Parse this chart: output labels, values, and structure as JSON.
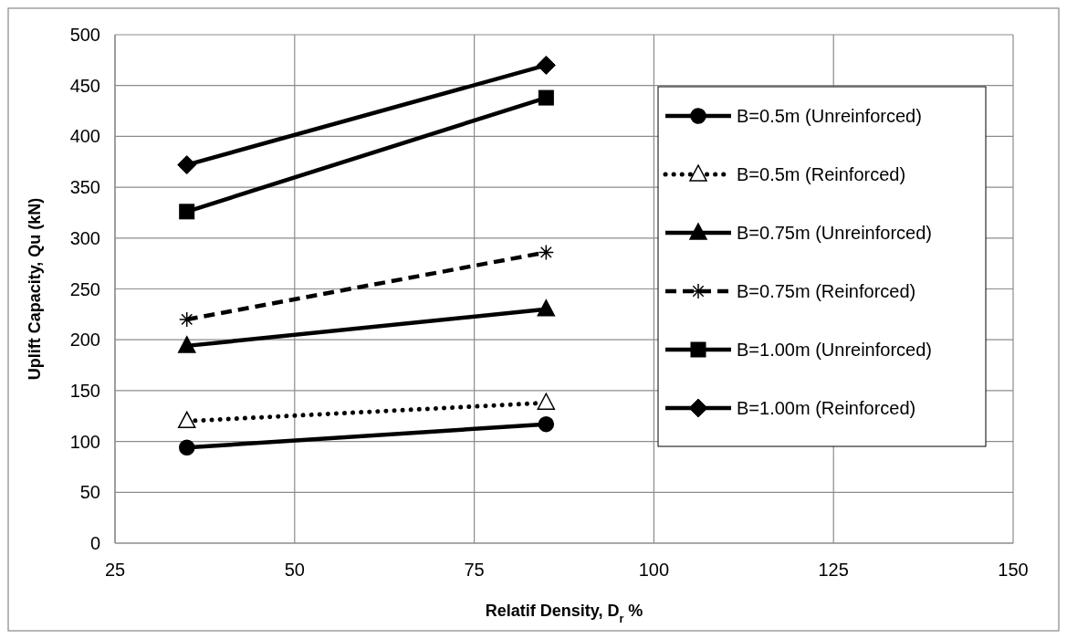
{
  "chart_data": {
    "type": "line",
    "xlabel": "Relatif Density, D$_{r}$ %",
    "ylabel": "Uplift Capacity, Qu (kN)",
    "x": [
      35,
      85
    ],
    "series": [
      {
        "name": "B=0.5m (Unreinforced)",
        "color": "#000000",
        "values": [
          94,
          117
        ],
        "marker": "circle",
        "line_style": "solid"
      },
      {
        "name": "B=0.5m (Reinforced)",
        "color": "#000000",
        "values": [
          120,
          138
        ],
        "marker": "triangle",
        "line_style": "dotted"
      },
      {
        "name": "B=0.75m (Unreinforced)",
        "color": "#000000",
        "values": [
          194,
          230
        ],
        "marker": "triangle",
        "line_style": "solid"
      },
      {
        "name": "B=0.75m (Reinforced)",
        "color": "#000000",
        "values": [
          220,
          286
        ],
        "marker": "cross",
        "line_style": "dashed"
      },
      {
        "name": "B=1.00m (Unreinforced)",
        "color": "#000000",
        "values": [
          326,
          438
        ],
        "marker": "square",
        "line_style": "solid"
      },
      {
        "name": "B=1.00m (Reinforced)",
        "color": "#000000",
        "values": [
          372,
          470
        ],
        "marker": "diamond",
        "line_style": "solid"
      }
    ],
    "xlim": [
      25,
      150
    ],
    "xticks": [
      25,
      50,
      75,
      100,
      125,
      150
    ],
    "ylim": [
      0,
      500
    ],
    "yticks": [
      0,
      50,
      100,
      150,
      200,
      250,
      300,
      350,
      400,
      450,
      500
    ],
    "grid": true,
    "legend": "top right"
  }
}
